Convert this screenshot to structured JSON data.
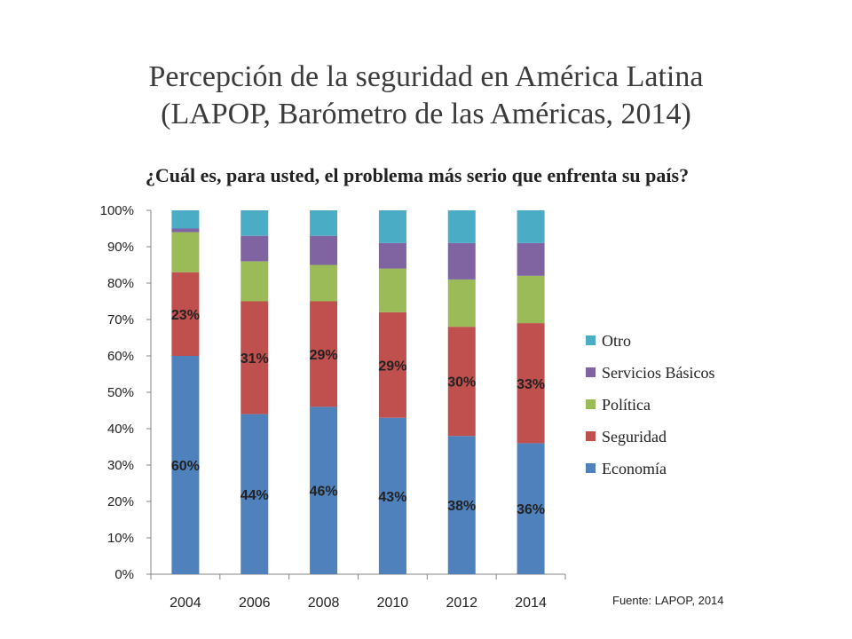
{
  "slide": {
    "title_line1": "Percepción de la seguridad en América Latina",
    "title_line2": "(LAPOP, Barómetro de las Américas, 2014)",
    "question": "¿Cuál es, para usted, el problema más serio que enfrenta su país?",
    "source": "Fuente: LAPOP, 2014"
  },
  "chart_data": {
    "type": "bar",
    "stacked": true,
    "categories": [
      "2004",
      "2006",
      "2008",
      "2010",
      "2012",
      "2014"
    ],
    "ylim": [
      0,
      100
    ],
    "yticks": [
      "0%",
      "10%",
      "20%",
      "30%",
      "40%",
      "50%",
      "60%",
      "70%",
      "80%",
      "90%",
      "100%"
    ],
    "grid": false,
    "legend_position": "right",
    "series": [
      {
        "name": "Economía",
        "color": "#4f81bd",
        "values": [
          60,
          44,
          46,
          43,
          38,
          36
        ],
        "labels": [
          "60%",
          "44%",
          "46%",
          "43%",
          "38%",
          "36%"
        ]
      },
      {
        "name": "Seguridad",
        "color": "#c0504d",
        "values": [
          23,
          31,
          29,
          29,
          30,
          33
        ],
        "labels": [
          "23%",
          "31%",
          "29%",
          "29%",
          "30%",
          "33%"
        ]
      },
      {
        "name": "Política",
        "color": "#9bbb59",
        "values": [
          11,
          11,
          10,
          12,
          13,
          13
        ]
      },
      {
        "name": "Servicios Básicos",
        "color": "#8064a2",
        "values": [
          1,
          7,
          8,
          7,
          10,
          9
        ]
      },
      {
        "name": "Otro",
        "color": "#4bacc6",
        "values": [
          5,
          7,
          7,
          9,
          9,
          9
        ]
      }
    ]
  }
}
